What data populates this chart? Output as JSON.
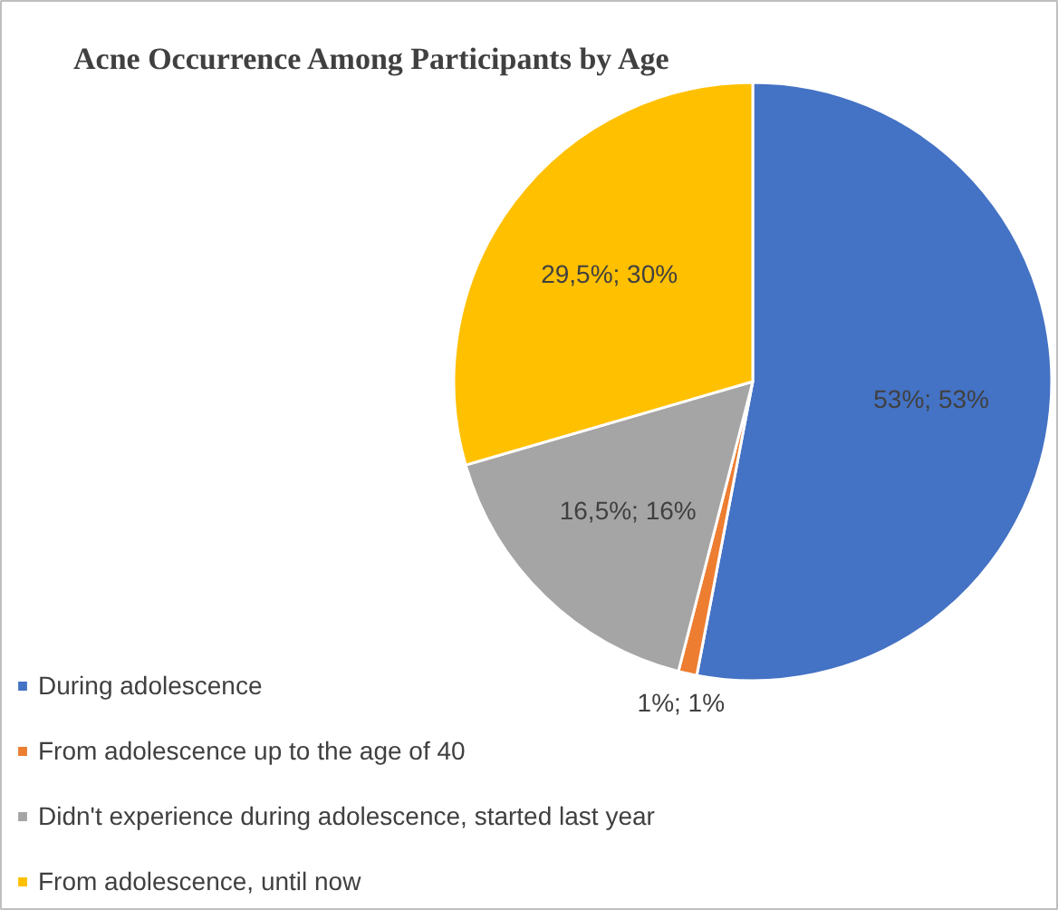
{
  "chart_data": {
    "type": "pie",
    "title": "Acne Occurrence Among Participants by Age",
    "categories": [
      "During adolescence",
      "From adolescence up to the age of 40",
      "Didn't experience during adolescence, started last year",
      "From adolescence, until now"
    ],
    "values": [
      53,
      1,
      16.5,
      29.5
    ],
    "colors": [
      "#4472c4",
      "#ed7d31",
      "#a5a5a5",
      "#ffc000"
    ],
    "value_labels": [
      "53%; 53%",
      "1%; 1%",
      "16,5%; 16%",
      "29,5%; 30%"
    ],
    "legend": "bottom left"
  }
}
